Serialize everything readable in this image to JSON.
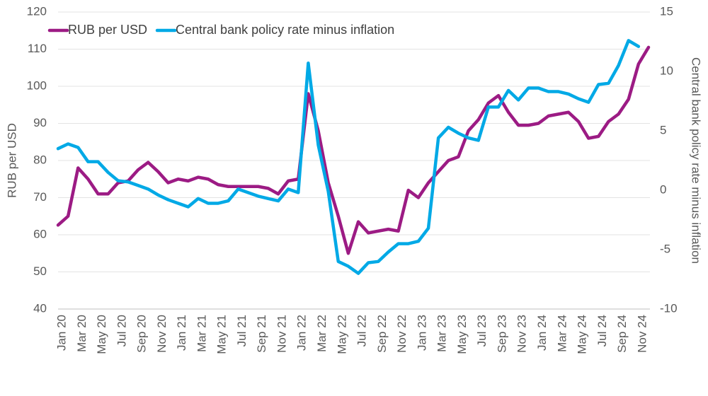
{
  "chart_data": {
    "type": "line",
    "categories": [
      "Jan 20",
      null,
      "Mar 20",
      null,
      "May 20",
      null,
      "Jul 20",
      null,
      "Sep 20",
      null,
      "Nov 20",
      null,
      "Jan 21",
      null,
      "Mar 21",
      null,
      "May 21",
      null,
      "Jul 21",
      null,
      "Sep 21",
      null,
      "Nov 21",
      null,
      "Jan 22",
      null,
      "Mar 22",
      null,
      "May 22",
      null,
      "Jul 22",
      null,
      "Sep 22",
      null,
      "Nov 22",
      null,
      "Jan 23",
      null,
      "Mar 23",
      null,
      "May 23",
      null,
      "Jul 23",
      null,
      "Sep 23",
      null,
      "Nov 23",
      null,
      "Jan 24",
      null,
      "Mar 24",
      null,
      "May 24",
      null,
      "Jul 24",
      null,
      "Sep 24",
      null,
      "Nov 24",
      null
    ],
    "series": [
      {
        "name": "RUB per USD",
        "color": "#9c1b84",
        "axis": "y",
        "values": [
          62.6,
          65,
          78,
          75,
          71,
          71,
          74,
          74.5,
          77.5,
          79.5,
          77,
          74,
          75,
          74.5,
          75.5,
          75,
          73.5,
          73,
          73,
          73,
          73,
          72.5,
          71,
          74.5,
          75,
          98,
          88,
          74,
          65,
          55,
          63.5,
          60.5,
          61,
          61.5,
          61,
          72,
          70,
          74,
          77,
          80,
          81,
          88,
          91,
          95.5,
          97.5,
          93,
          89.5,
          89.5,
          90,
          92,
          92.5,
          93,
          90.5,
          86,
          86.5,
          90.5,
          92.5,
          96.5,
          106,
          110.5
        ]
      },
      {
        "name": "Central bank policy rate minus inflation",
        "color": "#00a9e6",
        "axis": "y2",
        "values": [
          3.5,
          3.9,
          3.6,
          2.4,
          2.4,
          1.5,
          0.8,
          0.7,
          0.4,
          0.1,
          -0.4,
          -0.8,
          -1.1,
          -1.4,
          -0.7,
          -1.1,
          -1.1,
          -0.9,
          0.1,
          -0.2,
          -0.5,
          -0.7,
          -0.9,
          0.1,
          -0.2,
          10.7,
          3.8,
          -0.1,
          -6.0,
          -6.4,
          -7.0,
          -6.1,
          -6.0,
          -5.2,
          -4.5,
          -4.5,
          -4.3,
          -3.2,
          4.4,
          5.3,
          4.8,
          4.4,
          4.2,
          7.0,
          7.0,
          8.4,
          7.6,
          8.6,
          8.6,
          8.3,
          8.3,
          8.1,
          7.7,
          7.4,
          8.9,
          9.0,
          10.5,
          12.6,
          12.1,
          null
        ]
      }
    ],
    "y_label": "RUB per USD",
    "y2_label": "Central bank policy rate minus inflation",
    "ylim": [
      40,
      120
    ],
    "yticks": [
      40,
      50,
      60,
      70,
      80,
      90,
      100,
      110,
      120
    ],
    "y2lim": [
      -10,
      15
    ],
    "y2ticks": [
      -10,
      -5,
      0,
      5,
      10,
      15
    ],
    "grid": true,
    "legend": "top-left"
  }
}
